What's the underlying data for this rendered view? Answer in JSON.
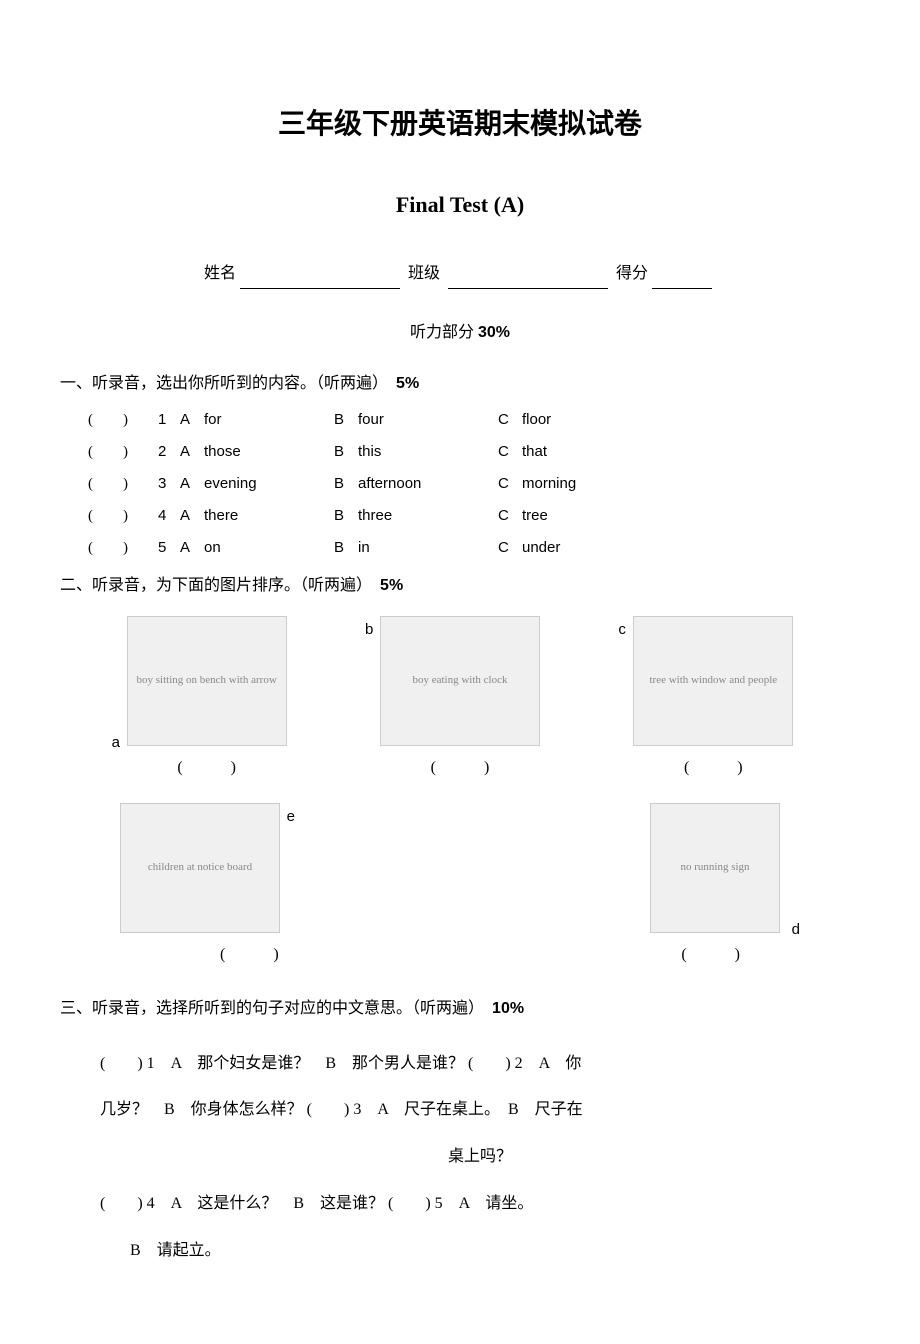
{
  "title_main": "三年级下册英语期末模拟试卷",
  "title_sub": "Final Test (A)",
  "info": {
    "name_label": "姓名",
    "class_label": "班级",
    "score_label": "得分"
  },
  "listening_header": "听力部分",
  "listening_percent": "30%",
  "section1": {
    "label_prefix": "一、",
    "title": "听录音，选出你所听到的内容。（听两遍）",
    "percent": "5%",
    "rows": [
      {
        "num": "1",
        "a": "for",
        "b": "four",
        "c": "floor"
      },
      {
        "num": "2",
        "a": "those",
        "b": "this",
        "c": "that"
      },
      {
        "num": "3",
        "a": "evening",
        "b": "afternoon",
        "c": "morning"
      },
      {
        "num": "4",
        "a": "there",
        "b": "three",
        "c": "tree"
      },
      {
        "num": "5",
        "a": "on",
        "b": "in",
        "c": "under"
      }
    ]
  },
  "section2": {
    "label_prefix": "二、",
    "title": "听录音，为下面的图片排序。（听两遍）",
    "percent": "5%",
    "images_row1": [
      {
        "letter": "a",
        "desc": "boy sitting on bench with arrow",
        "letter_pos": "bottom-left"
      },
      {
        "letter": "b",
        "desc": "boy eating with clock",
        "letter_pos": "top-left"
      },
      {
        "letter": "c",
        "desc": "tree with window and people",
        "letter_pos": "top-left"
      }
    ],
    "images_row2": [
      {
        "letter": "e",
        "desc": "children at notice board",
        "letter_pos": "top-left-outside"
      },
      {
        "letter": "d",
        "desc": "no running sign",
        "letter_pos": "bottom-right"
      }
    ],
    "paren": "(　　　)"
  },
  "section3": {
    "label_prefix": "三、",
    "title": "听录音，选择所听到的句子对应的中文意思。（听两遍）",
    "percent": "10%",
    "line1": "(　　) 1　A　那个妇女是谁？　B　那个男人是谁？ (　　) 2　A　你",
    "line2": "几岁？　B　你身体怎么样？ (　　) 3　A　尺子在桌上。　B　尺子在",
    "line3": "桌上吗？",
    "line4": "(　　) 4　A　这是什么？　B　这是谁？ (　　) 5　A　请坐。",
    "line5": "B　请起立。"
  },
  "opt_labels": {
    "a": "A",
    "b": "B",
    "c": "C"
  },
  "paren_blank": "(　　　)"
}
